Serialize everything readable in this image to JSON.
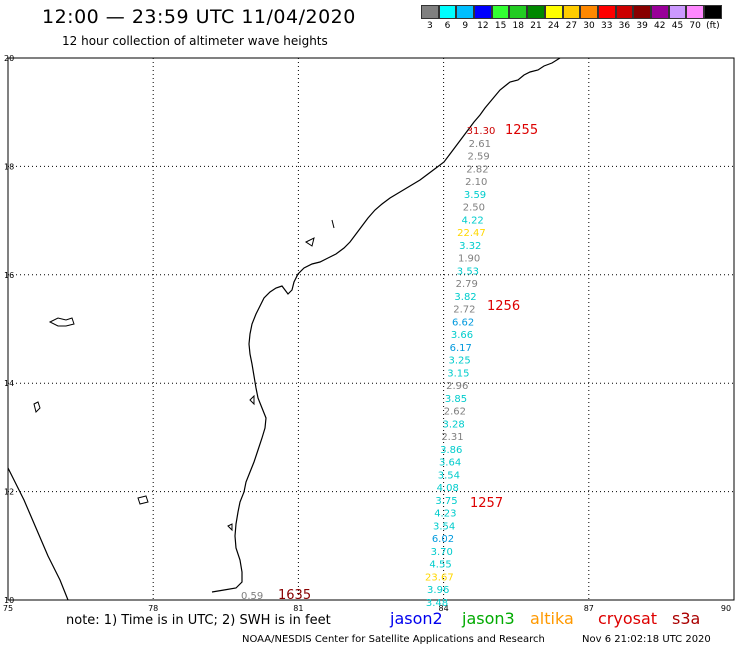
{
  "title": "12:00 — 23:59 UTC 11/04/2020",
  "subtitle": "12 hour collection of altimeter wave heights",
  "colorbar": {
    "colors": [
      "#808080",
      "#00ffff",
      "#00bfff",
      "#0000ff",
      "#33ff33",
      "#22cc22",
      "#008800",
      "#ffff00",
      "#ffcc00",
      "#ff8800",
      "#ff0000",
      "#cc0000",
      "#880000",
      "#990099",
      "#cc99ff",
      "#ff88ff",
      "#000000"
    ],
    "labels": [
      "3",
      "6",
      "9",
      "12",
      "15",
      "18",
      "21",
      "24",
      "27",
      "30",
      "33",
      "36",
      "39",
      "42",
      "45",
      "70",
      "(ft)"
    ]
  },
  "map": {
    "lon_range": [
      75,
      90
    ],
    "lat_range": [
      10,
      20
    ],
    "x_ticks": [
      "75",
      "78",
      "81",
      "84",
      "87",
      "90"
    ],
    "y_ticks": [
      "10",
      "12",
      "14",
      "16",
      "18",
      "20"
    ],
    "grid": "dotted"
  },
  "observations": [
    {
      "value": "31.30",
      "color": "#cc0000"
    },
    {
      "value": "2.61",
      "color": "#808080"
    },
    {
      "value": "2.59",
      "color": "#808080"
    },
    {
      "value": "2.82",
      "color": "#808080"
    },
    {
      "value": "2.10",
      "color": "#808080"
    },
    {
      "value": "3.59",
      "color": "#00cccc"
    },
    {
      "value": "2.50",
      "color": "#808080"
    },
    {
      "value": "4.22",
      "color": "#00cccc"
    },
    {
      "value": "22.47",
      "color": "#ffd700"
    },
    {
      "value": "3.32",
      "color": "#00cccc"
    },
    {
      "value": "1.90",
      "color": "#808080"
    },
    {
      "value": "3.53",
      "color": "#00cccc"
    },
    {
      "value": "2.79",
      "color": "#808080"
    },
    {
      "value": "3.82",
      "color": "#00cccc"
    },
    {
      "value": "2.72",
      "color": "#808080"
    },
    {
      "value": "6.62",
      "color": "#0099dd"
    },
    {
      "value": "3.66",
      "color": "#00cccc"
    },
    {
      "value": "6.17",
      "color": "#0099dd"
    },
    {
      "value": "3.25",
      "color": "#00cccc"
    },
    {
      "value": "3.15",
      "color": "#00cccc"
    },
    {
      "value": "2.96",
      "color": "#808080"
    },
    {
      "value": "3.85",
      "color": "#00cccc"
    },
    {
      "value": "2.62",
      "color": "#808080"
    },
    {
      "value": "3.28",
      "color": "#00cccc"
    },
    {
      "value": "2.31",
      "color": "#808080"
    },
    {
      "value": "3.86",
      "color": "#00cccc"
    },
    {
      "value": "3.64",
      "color": "#00cccc"
    },
    {
      "value": "3.54",
      "color": "#00cccc"
    },
    {
      "value": "4.08",
      "color": "#00cccc"
    },
    {
      "value": "3.75",
      "color": "#00cccc"
    },
    {
      "value": "4.23",
      "color": "#00cccc"
    },
    {
      "value": "3.54",
      "color": "#00cccc"
    },
    {
      "value": "6.02",
      "color": "#0099dd"
    },
    {
      "value": "3.70",
      "color": "#00cccc"
    },
    {
      "value": "4.55",
      "color": "#00cccc"
    },
    {
      "value": "23.67",
      "color": "#ffd700"
    },
    {
      "value": "3.96",
      "color": "#00cccc"
    },
    {
      "value": "3.48",
      "color": "#00cccc"
    }
  ],
  "time_labels": [
    {
      "text": "1255",
      "color": "#dd0000"
    },
    {
      "text": "1256",
      "color": "#dd0000"
    },
    {
      "text": "1257",
      "color": "#dd0000"
    },
    {
      "text": "1635",
      "color": "#880000"
    }
  ],
  "extra_obs": {
    "value": "0.59",
    "color": "#808080"
  },
  "footer_note": "note: 1) Time is in UTC; 2) SWH is in feet",
  "legend": [
    {
      "name": "jason2",
      "color": "#0000ee"
    },
    {
      "name": "jason3",
      "color": "#00aa00"
    },
    {
      "name": "altika",
      "color": "#ff9900"
    },
    {
      "name": "cryosat",
      "color": "#dd0000"
    },
    {
      "name": "s3a",
      "color": "#aa0000"
    }
  ],
  "credit": "NOAA/NESDIS Center for Satellite Applications and Research",
  "timestamp": "Nov  6 21:02:18 UTC 2020"
}
